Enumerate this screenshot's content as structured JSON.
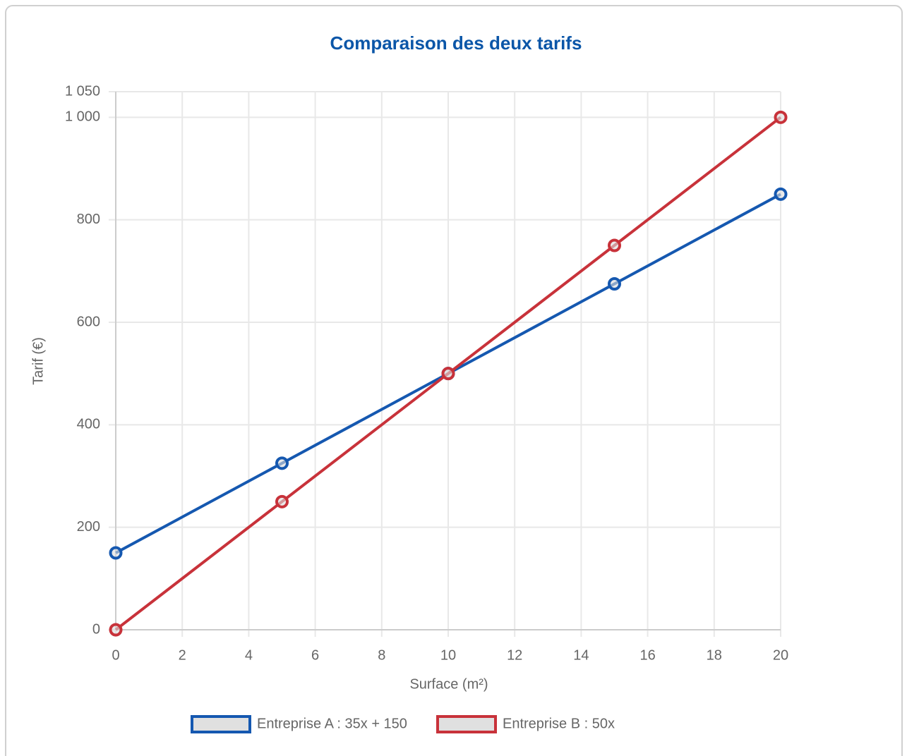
{
  "chart_data": {
    "type": "line",
    "title": "Comparaison des deux tarifs",
    "x_label": "Surface (m²)",
    "y_label": "Tarif (€)",
    "x": [
      0,
      5,
      10,
      15,
      20
    ],
    "series": [
      {
        "name": "Entreprise A : 35x + 150",
        "color": "#1558b0",
        "values": [
          150,
          325,
          500,
          675,
          850
        ]
      },
      {
        "name": "Entreprise B : 50x",
        "color": "#c8323a",
        "values": [
          0,
          250,
          500,
          750,
          1000
        ]
      }
    ],
    "xlim": [
      0,
      20
    ],
    "xticks": [
      0,
      2,
      4,
      6,
      8,
      10,
      12,
      14,
      16,
      18,
      20
    ],
    "ylim": [
      0,
      1050
    ],
    "yticks": [
      0,
      200,
      400,
      600,
      800,
      {
        "value": 1000,
        "label": "1 000"
      },
      {
        "value": 1050,
        "label": "1 050"
      }
    ],
    "grid": true,
    "legend": "bottom"
  }
}
